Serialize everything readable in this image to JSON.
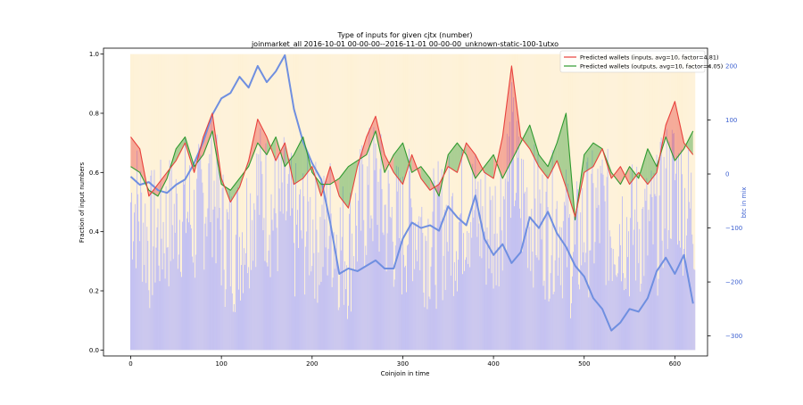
{
  "chart_data": {
    "type": "line",
    "title": "Type of inputs for given cjtx (number)",
    "subtitle": "joinmarket_all 2016-10-01 00-00-00--2016-11-01 00-00-00_unknown-static-100-1utxo",
    "xlabel": "Coinjoin in time",
    "ylabel": "Fraction of input numbers",
    "y2label": "btc in mix",
    "xlim": [
      -30,
      636
    ],
    "ylim": [
      -0.02,
      1.02
    ],
    "y2lim": [
      -337,
      233
    ],
    "xticks": [
      0,
      100,
      200,
      300,
      400,
      500,
      600
    ],
    "yticks": [
      0.0,
      0.2,
      0.4,
      0.6,
      0.8,
      1.0
    ],
    "y2ticks": [
      -300,
      -200,
      -100,
      0,
      100,
      200
    ],
    "legend_position": "top-right",
    "grid": false,
    "colors": {
      "inputs": "#e8413c",
      "outputs": "#2f9a2f",
      "btc": "#6f8fe0",
      "bars_fraction": "#b4b4f8",
      "bars_background": "#fde9c0"
    },
    "series": [
      {
        "name": "Predicted wallets (inputs, avg=10, factor=4.81)",
        "x": [
          0,
          10,
          20,
          30,
          40,
          50,
          60,
          70,
          80,
          90,
          100,
          110,
          120,
          130,
          140,
          150,
          160,
          170,
          180,
          190,
          200,
          210,
          220,
          230,
          240,
          250,
          260,
          270,
          280,
          290,
          300,
          310,
          320,
          330,
          340,
          350,
          360,
          370,
          380,
          390,
          400,
          410,
          420,
          430,
          440,
          450,
          460,
          470,
          480,
          490,
          500,
          510,
          520,
          530,
          540,
          550,
          560,
          570,
          580,
          590,
          600,
          610,
          620
        ],
        "values": [
          0.72,
          0.68,
          0.52,
          0.56,
          0.6,
          0.64,
          0.7,
          0.6,
          0.72,
          0.8,
          0.58,
          0.5,
          0.55,
          0.64,
          0.78,
          0.72,
          0.64,
          0.7,
          0.56,
          0.58,
          0.62,
          0.52,
          0.62,
          0.52,
          0.48,
          0.62,
          0.72,
          0.79,
          0.66,
          0.6,
          0.56,
          0.66,
          0.58,
          0.54,
          0.56,
          0.62,
          0.6,
          0.7,
          0.66,
          0.6,
          0.58,
          0.72,
          0.96,
          0.72,
          0.68,
          0.62,
          0.58,
          0.64,
          0.55,
          0.45,
          0.6,
          0.62,
          0.68,
          0.58,
          0.62,
          0.56,
          0.6,
          0.56,
          0.6,
          0.76,
          0.84,
          0.7,
          0.66
        ]
      },
      {
        "name": "Predicted wallets (outputs, avg=10, factor=4.05)",
        "x": [
          0,
          10,
          20,
          30,
          40,
          50,
          60,
          70,
          80,
          90,
          100,
          110,
          120,
          130,
          140,
          150,
          160,
          170,
          180,
          190,
          200,
          210,
          220,
          230,
          240,
          250,
          260,
          270,
          280,
          290,
          300,
          310,
          320,
          330,
          340,
          350,
          360,
          370,
          380,
          390,
          400,
          410,
          420,
          430,
          440,
          450,
          460,
          470,
          480,
          490,
          500,
          510,
          520,
          530,
          540,
          550,
          560,
          570,
          580,
          590,
          600,
          610,
          620
        ],
        "values": [
          0.62,
          0.6,
          0.54,
          0.52,
          0.58,
          0.68,
          0.72,
          0.62,
          0.66,
          0.74,
          0.56,
          0.54,
          0.58,
          0.62,
          0.7,
          0.66,
          0.72,
          0.62,
          0.66,
          0.72,
          0.6,
          0.56,
          0.56,
          0.58,
          0.62,
          0.64,
          0.66,
          0.74,
          0.6,
          0.66,
          0.7,
          0.6,
          0.62,
          0.58,
          0.52,
          0.66,
          0.7,
          0.66,
          0.58,
          0.62,
          0.66,
          0.58,
          0.64,
          0.7,
          0.76,
          0.66,
          0.62,
          0.7,
          0.8,
          0.44,
          0.66,
          0.7,
          0.68,
          0.6,
          0.56,
          0.62,
          0.58,
          0.68,
          0.62,
          0.72,
          0.64,
          0.68,
          0.74
        ]
      },
      {
        "name": "btc in mix",
        "axis": "right",
        "x": [
          0,
          10,
          20,
          30,
          40,
          50,
          60,
          70,
          80,
          90,
          100,
          110,
          120,
          130,
          140,
          150,
          160,
          170,
          180,
          190,
          200,
          210,
          220,
          230,
          240,
          250,
          260,
          270,
          280,
          290,
          300,
          310,
          320,
          330,
          340,
          350,
          360,
          370,
          380,
          390,
          400,
          410,
          420,
          430,
          440,
          450,
          460,
          470,
          480,
          490,
          500,
          510,
          520,
          530,
          540,
          550,
          560,
          570,
          580,
          590,
          600,
          610,
          620
        ],
        "values": [
          -5,
          -20,
          -15,
          -30,
          -35,
          -20,
          -10,
          20,
          60,
          110,
          140,
          150,
          180,
          160,
          200,
          170,
          190,
          220,
          120,
          60,
          20,
          -10,
          -90,
          -185,
          -175,
          -180,
          -170,
          -160,
          -175,
          -175,
          -120,
          -90,
          -100,
          -95,
          -105,
          -60,
          -80,
          -95,
          -40,
          -120,
          -150,
          -130,
          -165,
          -145,
          -80,
          -100,
          -70,
          -110,
          -135,
          -170,
          -190,
          -230,
          -250,
          -290,
          -275,
          -250,
          -255,
          -230,
          -180,
          -155,
          -185,
          -150,
          -240
        ]
      }
    ]
  }
}
